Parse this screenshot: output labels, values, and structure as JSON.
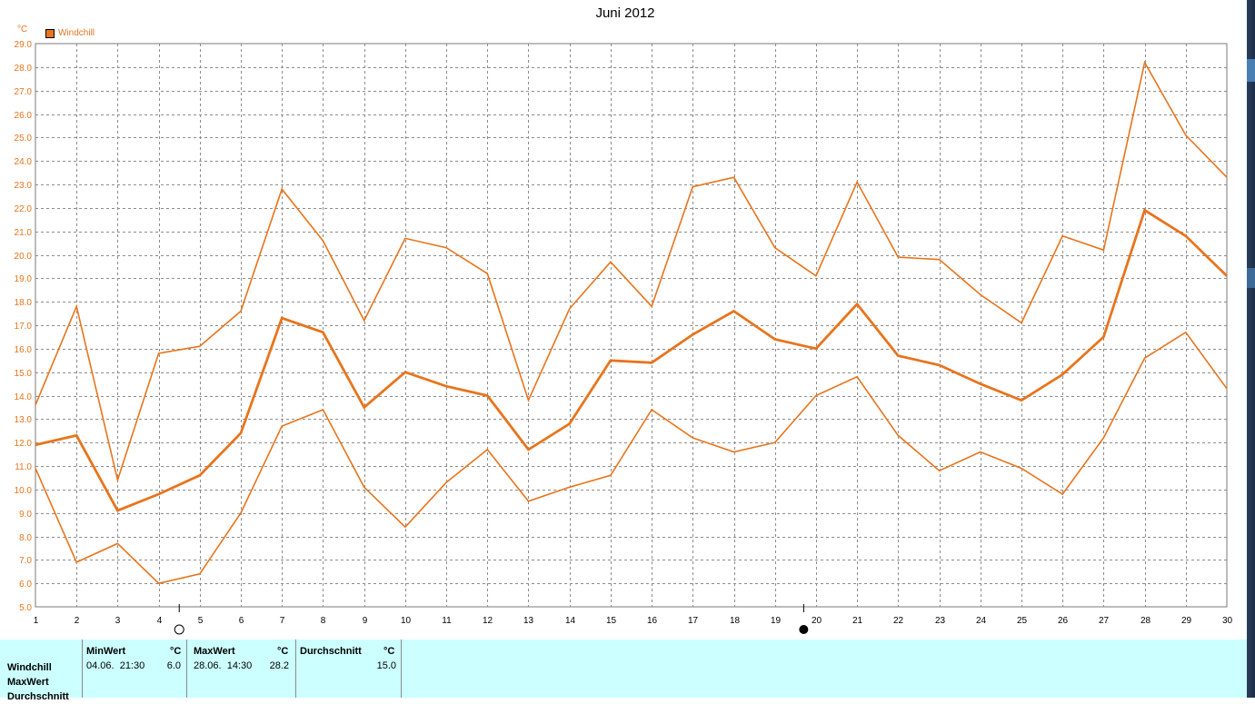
{
  "chart_data": {
    "type": "line",
    "title": "Juni 2012",
    "ylabel": "°C",
    "legend": [
      "Windchill"
    ],
    "legend_position": "top-left",
    "grid": true,
    "ylim": [
      6.0,
      29.0
    ],
    "xlim": [
      1,
      30
    ],
    "x": [
      1,
      2,
      3,
      4,
      5,
      6,
      7,
      8,
      9,
      10,
      11,
      12,
      13,
      14,
      15,
      16,
      17,
      18,
      19,
      20,
      21,
      22,
      23,
      24,
      25,
      26,
      27,
      28,
      29,
      30
    ],
    "yticks": [
      "5.0",
      "6.0",
      "7.0",
      "8.0",
      "9.0",
      "10.0",
      "11.0",
      "12.0",
      "13.0",
      "14.0",
      "15.0",
      "16.0",
      "17.0",
      "18.0",
      "19.0",
      "20.0",
      "21.0",
      "22.0",
      "23.0",
      "24.0",
      "25.0",
      "26.0",
      "27.0",
      "28.0",
      "29.0"
    ],
    "xticks": [
      "1",
      "2",
      "3",
      "4",
      "5",
      "6",
      "7",
      "8",
      "9",
      "10",
      "11",
      "12",
      "13",
      "14",
      "15",
      "16",
      "17",
      "18",
      "19",
      "20",
      "21",
      "22",
      "23",
      "24",
      "25",
      "26",
      "27",
      "28",
      "29",
      "30"
    ],
    "series": [
      {
        "values": [
          13.6,
          17.8,
          10.4,
          15.8,
          16.1,
          17.6,
          22.8,
          20.6,
          17.2,
          20.7,
          20.3,
          19.2,
          13.8,
          17.7,
          19.7,
          17.8,
          22.9,
          23.3,
          20.3,
          19.1,
          23.1,
          19.9,
          19.8,
          18.3,
          17.1,
          20.8,
          20.2,
          28.2,
          25.1,
          23.3
        ]
      },
      {
        "values": [
          11.9,
          12.3,
          9.1,
          9.8,
          10.6,
          12.4,
          17.3,
          16.7,
          13.5,
          15.0,
          14.4,
          14.0,
          11.7,
          12.8,
          15.5,
          15.4,
          16.6,
          17.6,
          16.4,
          16.0,
          17.9,
          15.7,
          15.3,
          14.5,
          13.8,
          14.9,
          16.5,
          21.9,
          20.8,
          19.1
        ]
      },
      {
        "values": [
          10.9,
          6.9,
          7.7,
          6.0,
          6.4,
          9.0,
          12.7,
          13.4,
          10.1,
          8.4,
          10.3,
          11.7,
          9.5,
          10.1,
          10.6,
          13.4,
          12.2,
          11.6,
          12.0,
          14.0,
          14.8,
          12.3,
          10.8,
          11.6,
          10.9,
          9.8,
          12.2,
          15.6,
          16.7,
          14.3
        ]
      }
    ],
    "colors": {
      "line": "#e8741c",
      "grid": "#8c8c8c",
      "panel": "#ccffff"
    },
    "markers": [
      {
        "type": "min",
        "x": 4.5,
        "symbol": "open-circle"
      },
      {
        "type": "max",
        "x": 19.7,
        "symbol": "filled-circle"
      }
    ]
  },
  "stats": {
    "row_labels": [
      "Windchill",
      "MaxWert",
      "Durchschnitt"
    ],
    "min": {
      "header": "MinWert",
      "unit": "°C",
      "datetime": "04.06.  21:30",
      "value": "6.0"
    },
    "max": {
      "header": "MaxWert",
      "unit": "°C",
      "datetime": "28.06.  14:30",
      "value": "28.2"
    },
    "avg": {
      "header": "Durchschnitt",
      "unit": "°C",
      "value": "15.0"
    }
  }
}
